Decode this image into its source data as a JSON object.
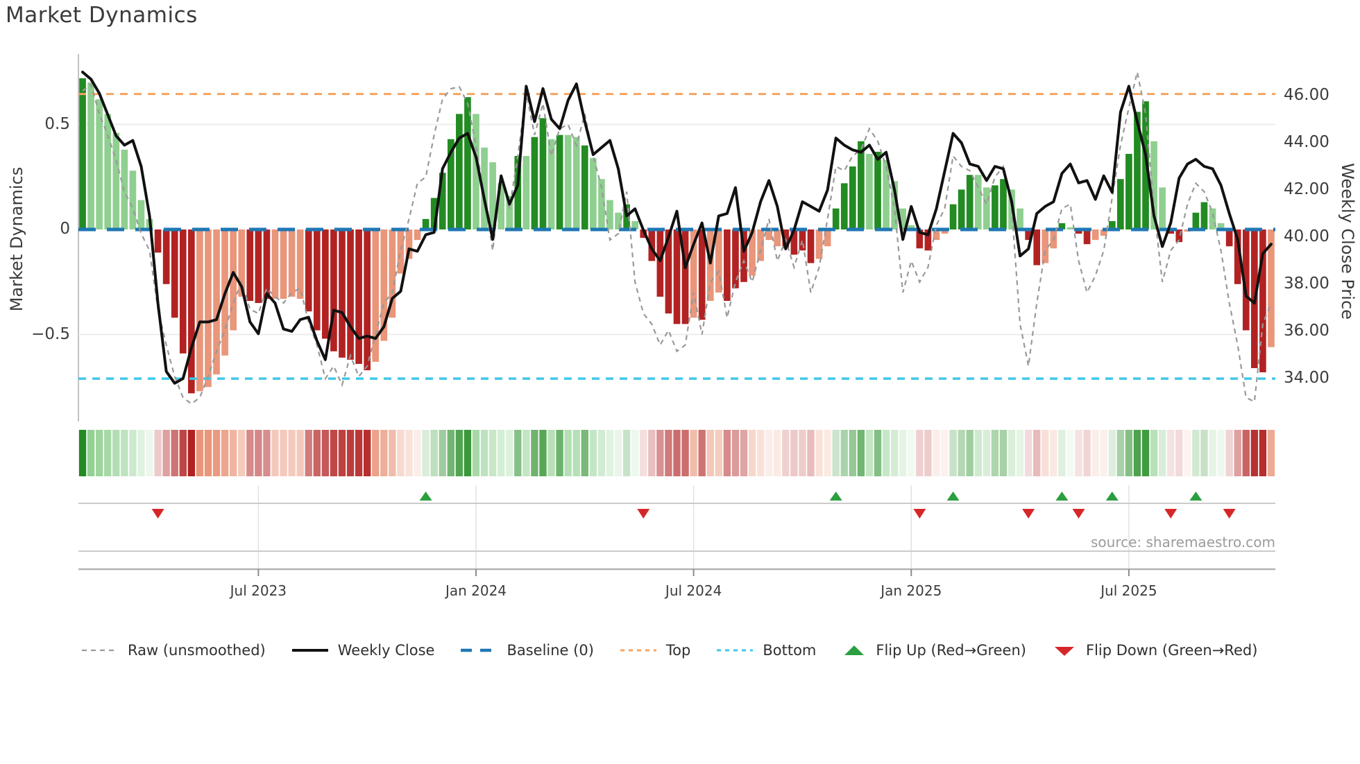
{
  "title": "Market Dynamics",
  "left_axis": {
    "label": "Market Dynamics",
    "ticks": [
      {
        "label": "0.5",
        "value": 0.5
      },
      {
        "label": "0",
        "value": 0
      },
      {
        "label": "−0.5",
        "value": -0.5
      }
    ]
  },
  "right_axis": {
    "label": "Weekly Close Price",
    "ticks": [
      {
        "label": "46.00",
        "value": 46
      },
      {
        "label": "44.00",
        "value": 44
      },
      {
        "label": "42.00",
        "value": 42
      },
      {
        "label": "40.00",
        "value": 40
      },
      {
        "label": "38.00",
        "value": 38
      },
      {
        "label": "36.00",
        "value": 36
      },
      {
        "label": "34.00",
        "value": 34
      }
    ]
  },
  "x_axis": {
    "tick_labels": [
      "Jul 2023",
      "Jan 2024",
      "Jul 2024",
      "Jan 2025",
      "Jul 2025"
    ],
    "tick_week_index": [
      22,
      48,
      74,
      100,
      126
    ]
  },
  "source": "source: sharemaestro.com",
  "legend": [
    {
      "label": "Raw (unsmoothed)",
      "swatch": "dash-gray"
    },
    {
      "label": "Weekly Close",
      "swatch": "line-black"
    },
    {
      "label": "Baseline (0)",
      "swatch": "dash-blue"
    },
    {
      "label": "Top",
      "swatch": "dot-orange"
    },
    {
      "label": "Bottom",
      "swatch": "dot-cyan"
    },
    {
      "label": "Flip Up (Red→Green)",
      "swatch": "tri-up"
    },
    {
      "label": "Flip Down (Green→Red)",
      "swatch": "tri-down"
    }
  ],
  "colors": {
    "bar_green_strong": "#228B22",
    "bar_green_soft": "#8FCF90",
    "bar_red_strong": "#B22222",
    "bar_red_soft": "#E9967A",
    "close_line": "#111111",
    "raw_line": "#999999",
    "baseline": "#1F77B4",
    "top_line": "#F4A460",
    "bottom_line": "#3EC8E8",
    "marker_up": "#2B9E3F",
    "marker_down": "#D62728",
    "grid": "#ECECEC",
    "panel_line": "#CBCBCB",
    "spine": "#B3B3B3"
  },
  "chart_data": {
    "type": "bar",
    "description": "Weekly market-dynamics oscillator bars with weekly close price line, raw unsmoothed oscillator, baseline/top/bottom reference lines, signed heatmap strip and red/green flip markers",
    "weeks": 143,
    "osc_gridlines": [
      0.5,
      0,
      -0.5
    ],
    "baseline_value": 0,
    "top_value": 0.645,
    "bottom_value": -0.71,
    "osc_ylim": [
      -0.92,
      0.83
    ],
    "price_ylim": [
      32.5,
      47.8
    ],
    "bar_values": [
      0.72,
      0.7,
      0.62,
      0.55,
      0.46,
      0.38,
      0.28,
      0.14,
      0.05,
      -0.11,
      -0.26,
      -0.42,
      -0.59,
      -0.78,
      -0.77,
      -0.75,
      -0.69,
      -0.6,
      -0.48,
      -0.32,
      -0.34,
      -0.35,
      -0.33,
      -0.33,
      -0.33,
      -0.32,
      -0.33,
      -0.39,
      -0.48,
      -0.52,
      -0.58,
      -0.61,
      -0.62,
      -0.64,
      -0.67,
      -0.63,
      -0.53,
      -0.42,
      -0.21,
      -0.14,
      -0.05,
      0.05,
      0.15,
      0.27,
      0.43,
      0.55,
      0.63,
      0.55,
      0.39,
      0.32,
      0.22,
      0.16,
      0.35,
      0.35,
      0.44,
      0.53,
      0.43,
      0.45,
      0.45,
      0.44,
      0.4,
      0.34,
      0.24,
      0.14,
      0.08,
      0.12,
      0.04,
      -0.04,
      -0.15,
      -0.32,
      -0.4,
      -0.45,
      -0.45,
      -0.42,
      -0.43,
      -0.34,
      -0.3,
      -0.34,
      -0.28,
      -0.25,
      -0.22,
      -0.15,
      -0.05,
      -0.08,
      -0.09,
      -0.12,
      -0.1,
      -0.16,
      -0.14,
      -0.08,
      0.1,
      0.22,
      0.3,
      0.42,
      0.36,
      0.37,
      0.33,
      0.23,
      0.1,
      0.02,
      -0.09,
      -0.1,
      -0.05,
      -0.02,
      0.12,
      0.19,
      0.26,
      0.26,
      0.2,
      0.21,
      0.24,
      0.19,
      0.1,
      -0.05,
      -0.17,
      -0.16,
      -0.09,
      0.03,
      0.01,
      -0.02,
      -0.07,
      -0.05,
      -0.03,
      0.04,
      0.24,
      0.36,
      0.56,
      0.61,
      0.42,
      0.2,
      -0.02,
      -0.06,
      -0.01,
      0.08,
      0.13,
      0.1,
      0.03,
      -0.08,
      -0.26,
      -0.48,
      -0.66,
      -0.68,
      -0.56
    ],
    "bar_tone": "GggggggggRRRRRrrrrrrRRRrrrrRRRRRRRRrrrrrrGGGGGGgggggGgGGgGggGggggGgRRRRRRrRrrRRRrrrrRRRRrrGGGGgGggggRRrrGGGggGGggRRrrGgRRrrGGGGGggRRrGGggRRRRRr",
    "close_values": [
      47.0,
      46.7,
      46.1,
      45.2,
      44.3,
      43.9,
      44.1,
      43.0,
      40.9,
      37.2,
      34.3,
      33.8,
      34.0,
      35.3,
      36.4,
      36.4,
      36.5,
      37.6,
      38.5,
      37.9,
      36.4,
      35.9,
      37.6,
      37.2,
      36.1,
      36.0,
      36.5,
      36.6,
      35.6,
      34.8,
      36.9,
      36.8,
      36.2,
      35.7,
      35.8,
      35.7,
      36.2,
      37.4,
      37.7,
      39.5,
      39.4,
      40.1,
      40.2,
      42.9,
      43.6,
      44.2,
      44.4,
      43.4,
      41.6,
      39.9,
      42.6,
      41.4,
      42.2,
      46.4,
      44.9,
      46.3,
      45.0,
      44.6,
      45.8,
      46.5,
      44.9,
      43.5,
      43.8,
      44.1,
      42.9,
      40.9,
      41.2,
      40.3,
      39.5,
      39.0,
      40.0,
      41.1,
      38.7,
      39.7,
      40.6,
      38.9,
      40.9,
      41.0,
      42.1,
      39.4,
      40.2,
      41.5,
      42.4,
      41.3,
      39.5,
      40.3,
      41.5,
      41.3,
      41.1,
      42.0,
      44.2,
      43.9,
      43.7,
      43.6,
      43.9,
      43.3,
      43.6,
      42.0,
      39.9,
      41.3,
      40.2,
      40.1,
      41.2,
      42.8,
      44.4,
      44.0,
      43.1,
      43.0,
      42.4,
      43.0,
      42.9,
      41.5,
      39.2,
      39.5,
      41.0,
      41.3,
      41.5,
      42.7,
      43.1,
      42.3,
      42.4,
      41.6,
      42.6,
      41.9,
      45.3,
      46.4,
      44.9,
      43.5,
      40.9,
      39.6,
      40.6,
      42.5,
      43.1,
      43.3,
      43.0,
      42.9,
      42.2,
      41.0,
      39.9,
      37.5,
      37.2,
      39.3,
      39.7
    ],
    "raw_values": [
      0.66,
      0.69,
      0.55,
      0.45,
      0.33,
      0.18,
      0.1,
      -0.02,
      -0.1,
      -0.38,
      -0.55,
      -0.7,
      -0.8,
      -0.83,
      -0.8,
      -0.7,
      -0.58,
      -0.48,
      -0.35,
      -0.25,
      -0.38,
      -0.4,
      -0.28,
      -0.32,
      -0.35,
      -0.3,
      -0.28,
      -0.44,
      -0.55,
      -0.71,
      -0.65,
      -0.74,
      -0.6,
      -0.7,
      -0.65,
      -0.5,
      -0.35,
      -0.3,
      -0.1,
      0.05,
      0.22,
      0.25,
      0.45,
      0.62,
      0.67,
      0.68,
      0.6,
      0.4,
      0.15,
      -0.1,
      0.25,
      0.1,
      0.35,
      0.65,
      0.45,
      0.6,
      0.35,
      0.48,
      0.5,
      0.4,
      0.55,
      0.35,
      0.2,
      -0.05,
      -0.02,
      0.18,
      -0.25,
      -0.4,
      -0.45,
      -0.55,
      -0.48,
      -0.58,
      -0.55,
      -0.3,
      -0.5,
      -0.25,
      -0.2,
      -0.42,
      -0.25,
      -0.15,
      -0.25,
      -0.1,
      0.05,
      -0.15,
      -0.05,
      -0.18,
      -0.05,
      -0.3,
      -0.18,
      0.05,
      0.3,
      0.28,
      0.35,
      0.38,
      0.48,
      0.42,
      0.3,
      0.1,
      -0.3,
      -0.15,
      -0.25,
      -0.18,
      0.02,
      0.1,
      0.35,
      0.3,
      0.28,
      0.2,
      0.12,
      0.25,
      0.3,
      0.1,
      -0.45,
      -0.65,
      -0.35,
      -0.1,
      -0.05,
      0.1,
      0.12,
      -0.15,
      -0.3,
      -0.22,
      -0.1,
      0.15,
      0.4,
      0.58,
      0.75,
      0.55,
      0.1,
      -0.25,
      -0.1,
      -0.05,
      0.12,
      0.22,
      0.18,
      0.08,
      -0.1,
      -0.35,
      -0.55,
      -0.8,
      -0.82,
      -0.45,
      -0.35
    ],
    "flip_up_weeks": [
      42,
      91,
      105,
      118,
      124,
      134
    ],
    "flip_down_weeks": [
      10,
      68,
      101,
      114,
      120,
      131,
      138
    ]
  }
}
